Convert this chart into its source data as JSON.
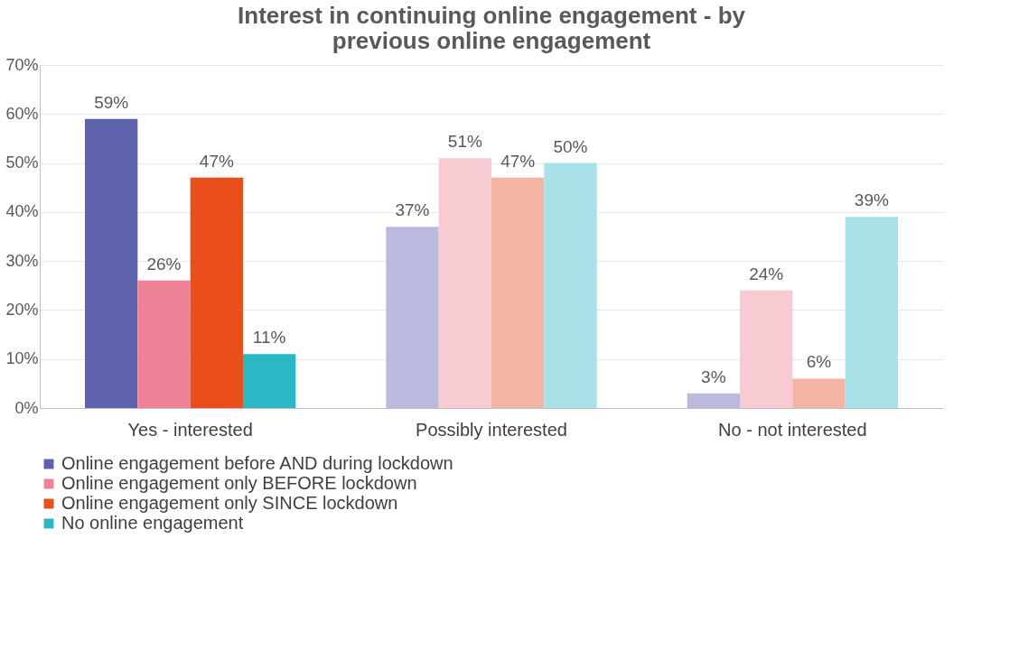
{
  "chart_data": {
    "type": "bar",
    "title": [
      "Interest in continuing online engagement - by",
      "previous online engagement"
    ],
    "categories": [
      "Yes - interested",
      "Possibly interested",
      "No - not interested"
    ],
    "series": [
      {
        "name": "Online engagement before AND during lockdown",
        "color": "#5f63ac",
        "colors": [
          "#5f63ac",
          "#b9bade",
          "#b9bade"
        ],
        "values": [
          59,
          37,
          3
        ],
        "value_labels": [
          "59%",
          "37%",
          "3%"
        ]
      },
      {
        "name": "Online engagement only BEFORE lockdown",
        "color": "#ee8297",
        "colors": [
          "#ee8297",
          "#f8cad2",
          "#f8cad2"
        ],
        "values": [
          26,
          51,
          24
        ],
        "value_labels": [
          "26%",
          "51%",
          "24%"
        ]
      },
      {
        "name": "Online engagement only SINCE lockdown",
        "color": "#e94e1b",
        "colors": [
          "#e94e1b",
          "#f4b4a3",
          "#f4b4a3"
        ],
        "values": [
          47,
          47,
          6
        ],
        "value_labels": [
          "47%",
          "47%",
          "6%"
        ]
      },
      {
        "name": "No online engagement",
        "color": "#2bb7c4",
        "colors": [
          "#2bb7c4",
          "#a8e2e8",
          "#a8e2e8"
        ],
        "values": [
          11,
          50,
          39
        ],
        "value_labels": [
          "11%",
          "50%",
          "39%"
        ]
      }
    ],
    "ylim": [
      0,
      70
    ],
    "yticks": [
      {
        "value": 0,
        "label": "0%"
      },
      {
        "value": 10,
        "label": "10%"
      },
      {
        "value": 20,
        "label": "20%"
      },
      {
        "value": 30,
        "label": "30%"
      },
      {
        "value": 40,
        "label": "40%"
      },
      {
        "value": 50,
        "label": "50%"
      },
      {
        "value": 60,
        "label": "60%"
      },
      {
        "value": 70,
        "label": "70%"
      }
    ],
    "grid": "y",
    "legend": "bottom"
  }
}
